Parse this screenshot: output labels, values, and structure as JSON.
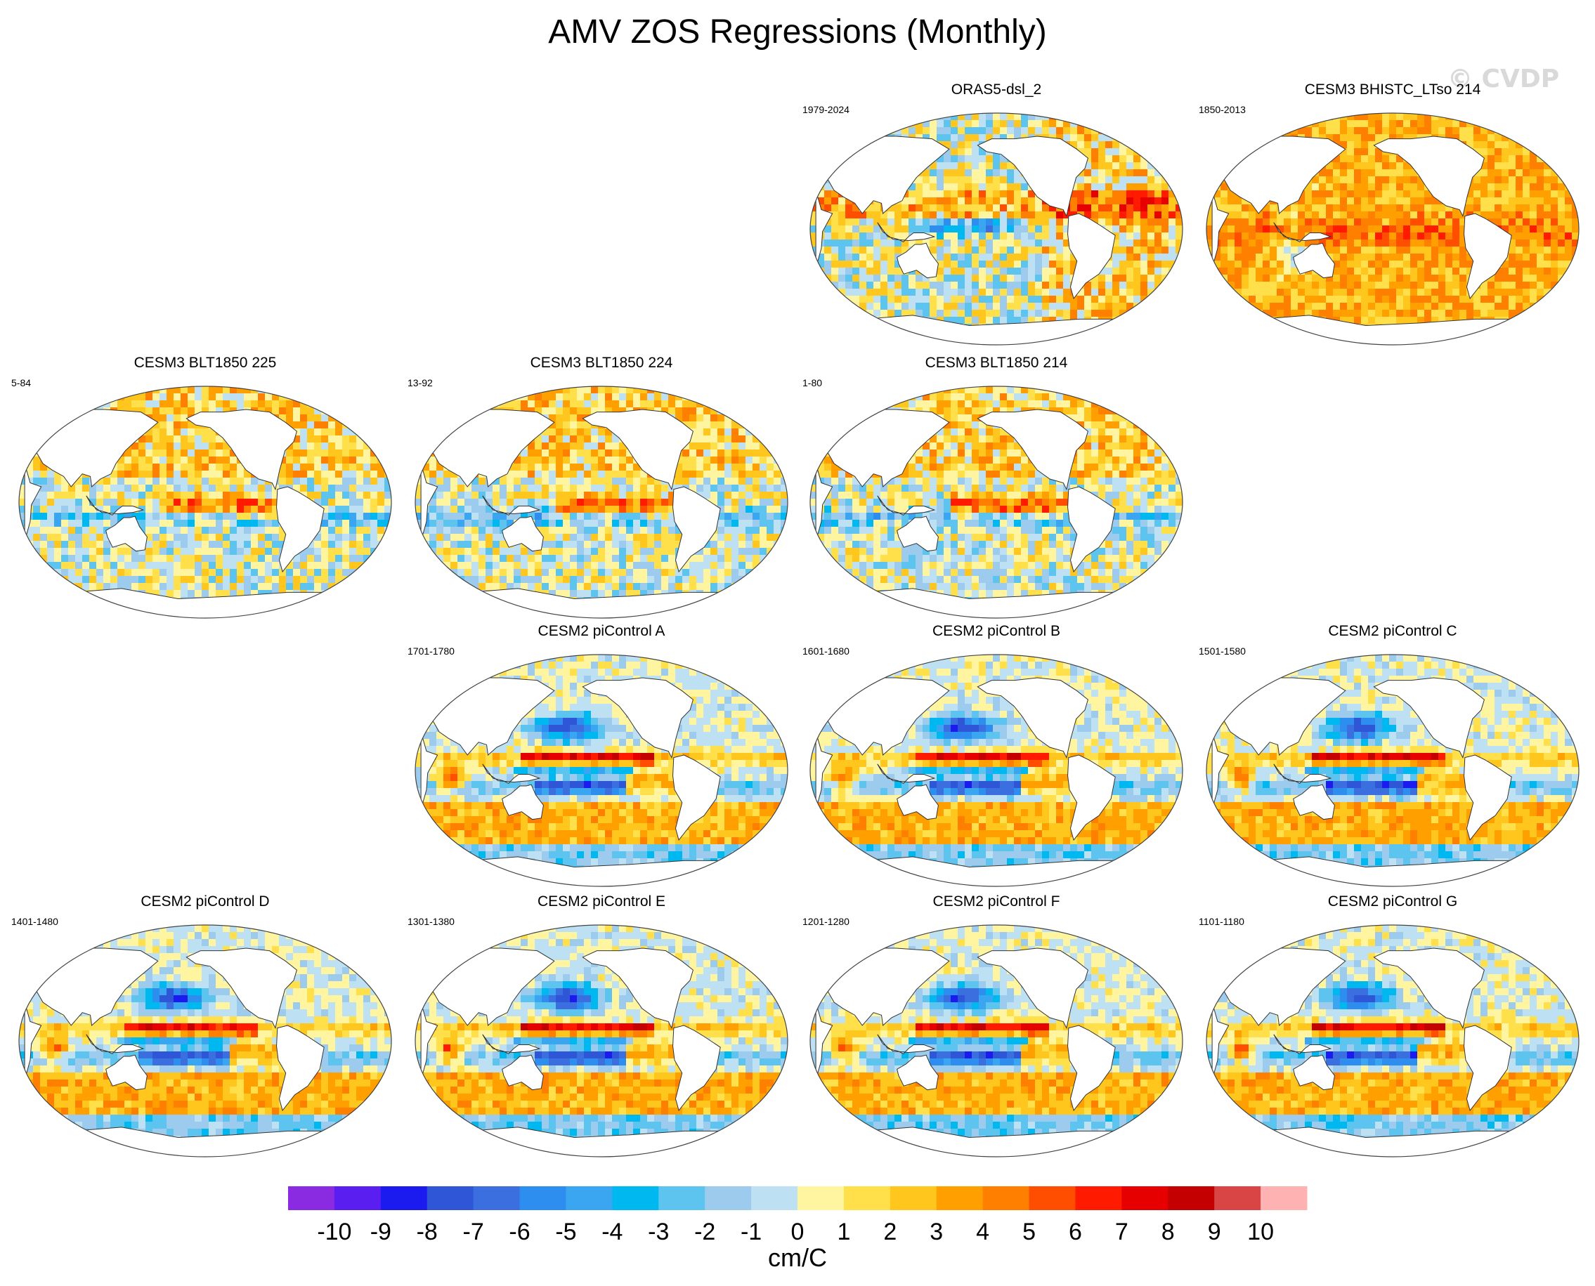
{
  "title": "AMV ZOS Regressions (Monthly)",
  "watermark": "© CVDP",
  "panels": [
    {
      "name": "ORAS5-dsl_2",
      "period": "1979-2024",
      "style": "reanalysis"
    },
    {
      "name": "CESM3 BHISTC_LTso 214",
      "period": "1850-2013",
      "style": "hist"
    },
    {
      "name": "CESM3 BLT1850 225",
      "period": "5-84",
      "style": "blt"
    },
    {
      "name": "CESM3 BLT1850 224",
      "period": "13-92",
      "style": "blt"
    },
    {
      "name": "CESM3 BLT1850 214",
      "period": "1-80",
      "style": "blt"
    },
    {
      "name": "CESM2 piControl A",
      "period": "1701-1780",
      "style": "pic"
    },
    {
      "name": "CESM2 piControl B",
      "period": "1601-1680",
      "style": "pic"
    },
    {
      "name": "CESM2 piControl C",
      "period": "1501-1580",
      "style": "pic"
    },
    {
      "name": "CESM2 piControl D",
      "period": "1401-1480",
      "style": "pic"
    },
    {
      "name": "CESM2 piControl E",
      "period": "1301-1380",
      "style": "pic"
    },
    {
      "name": "CESM2 piControl F",
      "period": "1201-1280",
      "style": "pic"
    },
    {
      "name": "CESM2 piControl G",
      "period": "1101-1180",
      "style": "pic"
    }
  ],
  "chart_data": {
    "type": "heatmap",
    "title": "AMV ZOS Regressions (Monthly)",
    "projection": "Robinson (global, Pacific-centered)",
    "panels": [
      "ORAS5-dsl_2",
      "CESM3 BHISTC_LTso 214",
      "CESM3 BLT1850 225",
      "CESM3 BLT1850 224",
      "CESM3 BLT1850 214",
      "CESM2 piControl A",
      "CESM2 piControl B",
      "CESM2 piControl C",
      "CESM2 piControl D",
      "CESM2 piControl E",
      "CESM2 piControl F",
      "CESM2 piControl G"
    ],
    "colorbar": {
      "labels": [
        "-10",
        "-9",
        "-8",
        "-7",
        "-6",
        "-5",
        "-4",
        "-3",
        "-2",
        "-1",
        "0",
        "1",
        "2",
        "3",
        "4",
        "5",
        "6",
        "7",
        "8",
        "9",
        "10"
      ],
      "colors": [
        "#8a2be2",
        "#5a1ef0",
        "#1b1bf0",
        "#2e56d6",
        "#3b6fe0",
        "#2d8ef0",
        "#3aa6f2",
        "#00b8f0",
        "#5cc4ef",
        "#9ccbed",
        "#bde1f3",
        "#fff5a0",
        "#ffe04a",
        "#ffc61e",
        "#ffa000",
        "#ff7f00",
        "#ff4e00",
        "#ff1a00",
        "#e60000",
        "#c40000",
        "#d94545",
        "#ffb2b2"
      ],
      "units": "cm/C",
      "range": [
        -10,
        10
      ]
    }
  }
}
